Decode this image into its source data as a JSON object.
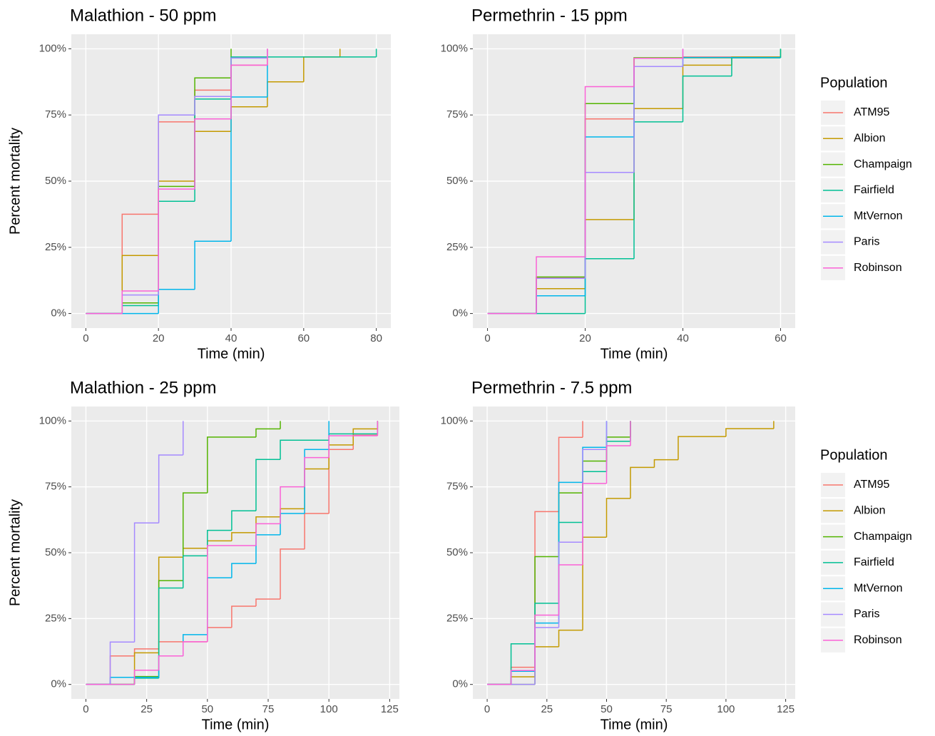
{
  "chart_data": [
    {
      "type": "line",
      "step": "post",
      "title": "Malathion - 50 ppm",
      "x_label": "Time (min)",
      "y_label": "Percent mortality",
      "xlim": [
        -4,
        84
      ],
      "xticks": [
        0,
        20,
        40,
        60,
        80
      ],
      "ylim": [
        -5.5,
        105.5
      ],
      "yticks": [
        {
          "value": 0,
          "label": "0%"
        },
        {
          "value": 25,
          "label": "25%"
        },
        {
          "value": 50,
          "label": "50%"
        },
        {
          "value": 75,
          "label": "75%"
        },
        {
          "value": 100,
          "label": "100%"
        }
      ],
      "grid": true,
      "series": [
        {
          "name": "ATM95",
          "color": "#F8766D",
          "x": [
            0,
            10,
            20,
            30,
            40,
            50
          ],
          "values": [
            0,
            37.5,
            72.4,
            84.4,
            93.8,
            100
          ]
        },
        {
          "name": "Albion",
          "color": "#C49A00",
          "x": [
            0,
            10,
            20,
            30,
            40,
            50,
            60,
            70
          ],
          "values": [
            0,
            21.9,
            50,
            68.8,
            78.1,
            87.5,
            96.9,
            100
          ]
        },
        {
          "name": "Champaign",
          "color": "#53B400",
          "x": [
            0,
            10,
            20,
            30,
            40
          ],
          "values": [
            0,
            4,
            48,
            89,
            100
          ]
        },
        {
          "name": "Fairfield",
          "color": "#00C094",
          "x": [
            0,
            10,
            20,
            30,
            40,
            80
          ],
          "values": [
            0,
            3,
            42.4,
            81,
            96.9,
            100
          ]
        },
        {
          "name": "MtVernon",
          "color": "#00B6EB",
          "x": [
            0,
            10,
            20,
            30,
            40,
            50
          ],
          "values": [
            0,
            0,
            9.1,
            27.3,
            81.8,
            93.9
          ]
        },
        {
          "name": "Paris",
          "color": "#A58AFF",
          "x": [
            0,
            10,
            20,
            30,
            40,
            50
          ],
          "values": [
            0,
            7,
            75,
            82,
            96.5,
            100
          ]
        },
        {
          "name": "Robinson",
          "color": "#FB61D7",
          "x": [
            0,
            10,
            20,
            30,
            40,
            50
          ],
          "values": [
            0,
            8.5,
            47,
            73.5,
            93.8,
            100
          ]
        }
      ]
    },
    {
      "type": "line",
      "step": "post",
      "title": "Permethrin - 15 ppm",
      "x_label": "Time (min)",
      "xlim": [
        -3,
        63
      ],
      "xticks": [
        0,
        20,
        40,
        60
      ],
      "ylim": [
        -5.5,
        105.5
      ],
      "yticks": [
        {
          "value": 0,
          "label": "0%"
        },
        {
          "value": 25,
          "label": "25%"
        },
        {
          "value": 50,
          "label": "50%"
        },
        {
          "value": 75,
          "label": "75%"
        },
        {
          "value": 100,
          "label": "100%"
        }
      ],
      "grid": true,
      "legend": "right",
      "legend_title": "Population",
      "series": [
        {
          "name": "ATM95",
          "color": "#F8766D",
          "x": [
            0,
            10,
            20,
            30,
            40,
            60
          ],
          "values": [
            0,
            13.5,
            73.5,
            96.5,
            96.9,
            96.9
          ]
        },
        {
          "name": "Albion",
          "color": "#C49A00",
          "x": [
            0,
            10,
            20,
            30,
            40,
            50,
            60
          ],
          "values": [
            0,
            9.4,
            35.5,
            77.4,
            93.8,
            96.9,
            96.9
          ]
        },
        {
          "name": "Champaign",
          "color": "#53B400",
          "x": [
            0,
            10,
            20,
            30,
            40,
            60
          ],
          "values": [
            0,
            13.8,
            79.3,
            96.6,
            96.6,
            100
          ]
        },
        {
          "name": "Fairfield",
          "color": "#00C094",
          "x": [
            0,
            10,
            20,
            30,
            40,
            50,
            60
          ],
          "values": [
            0,
            0,
            20.7,
            72.4,
            89.7,
            96.6,
            100
          ]
        },
        {
          "name": "MtVernon",
          "color": "#00B6EB",
          "x": [
            0,
            10,
            20,
            30,
            40,
            60
          ],
          "values": [
            0,
            6.7,
            66.7,
            93.3,
            96.7,
            96.7
          ]
        },
        {
          "name": "Paris",
          "color": "#A58AFF",
          "x": [
            0,
            10,
            20,
            30,
            40
          ],
          "values": [
            0,
            13.3,
            53.3,
            93.3,
            100
          ]
        },
        {
          "name": "Robinson",
          "color": "#FB61D7",
          "x": [
            0,
            10,
            20,
            30,
            40
          ],
          "values": [
            0,
            21.4,
            85.7,
            96.4,
            100
          ]
        }
      ]
    },
    {
      "type": "line",
      "step": "post",
      "title": "Malathion - 25 ppm",
      "x_label": "Time (min)",
      "y_label": "Percent mortality",
      "xlim": [
        -6,
        129
      ],
      "xticks": [
        0,
        25,
        50,
        75,
        100,
        125
      ],
      "ylim": [
        -5.5,
        105.5
      ],
      "yticks": [
        {
          "value": 0,
          "label": "0%"
        },
        {
          "value": 25,
          "label": "25%"
        },
        {
          "value": 50,
          "label": "50%"
        },
        {
          "value": 75,
          "label": "75%"
        },
        {
          "value": 100,
          "label": "100%"
        }
      ],
      "grid": true,
      "series": [
        {
          "name": "ATM95",
          "color": "#F8766D",
          "x": [
            0,
            10,
            20,
            30,
            40,
            50,
            60,
            70,
            80,
            90,
            100,
            110,
            120
          ],
          "values": [
            0,
            10.8,
            13.5,
            16.2,
            16.2,
            21.6,
            29.7,
            32.4,
            51.4,
            64.9,
            89.2,
            94.6,
            100
          ]
        },
        {
          "name": "Albion",
          "color": "#C49A00",
          "x": [
            0,
            20,
            30,
            40,
            50,
            60,
            70,
            80,
            90,
            100,
            110,
            120
          ],
          "values": [
            0,
            12,
            48.3,
            51.7,
            54.5,
            57.6,
            63.6,
            66.7,
            81.8,
            90.9,
            97,
            100
          ]
        },
        {
          "name": "Champaign",
          "color": "#53B400",
          "x": [
            0,
            20,
            30,
            40,
            50,
            70,
            80
          ],
          "values": [
            0,
            3,
            39.4,
            72.7,
            93.9,
            97,
            100
          ]
        },
        {
          "name": "Fairfield",
          "color": "#00C094",
          "x": [
            0,
            20,
            30,
            40,
            50,
            60,
            70,
            80,
            100,
            120
          ],
          "values": [
            0,
            2.4,
            36.6,
            48.8,
            58.5,
            65.9,
            85.4,
            92.7,
            95.1,
            100
          ]
        },
        {
          "name": "MtVernon",
          "color": "#00B6EB",
          "x": [
            0,
            10,
            30,
            40,
            50,
            60,
            70,
            80,
            90,
            100
          ],
          "values": [
            0,
            2.7,
            10.8,
            18.9,
            40.5,
            45.9,
            56.8,
            64.9,
            89.2,
            100
          ]
        },
        {
          "name": "Paris",
          "color": "#A58AFF",
          "x": [
            0,
            10,
            20,
            30,
            40
          ],
          "values": [
            0,
            16.1,
            61.3,
            87.1,
            100
          ]
        },
        {
          "name": "Robinson",
          "color": "#FB61D7",
          "x": [
            0,
            20,
            30,
            40,
            50,
            70,
            80,
            90,
            100,
            120
          ],
          "values": [
            0,
            5.4,
            10.8,
            16.2,
            52.7,
            61,
            75,
            86.1,
            94.4,
            100
          ]
        }
      ]
    },
    {
      "type": "line",
      "step": "post",
      "title": "Permethrin - 7.5 ppm",
      "x_label": "Time (min)",
      "xlim": [
        -6,
        129
      ],
      "xticks": [
        0,
        25,
        50,
        75,
        100,
        125
      ],
      "ylim": [
        -5.5,
        105.5
      ],
      "yticks": [
        {
          "value": 0,
          "label": "0%"
        },
        {
          "value": 25,
          "label": "25%"
        },
        {
          "value": 50,
          "label": "50%"
        },
        {
          "value": 75,
          "label": "75%"
        },
        {
          "value": 100,
          "label": "100%"
        }
      ],
      "grid": true,
      "legend": "right",
      "legend_title": "Population",
      "series": [
        {
          "name": "ATM95",
          "color": "#F8766D",
          "x": [
            0,
            10,
            20,
            30,
            40
          ],
          "values": [
            0,
            6.5,
            65.6,
            93.8,
            100
          ]
        },
        {
          "name": "Albion",
          "color": "#C49A00",
          "x": [
            0,
            10,
            20,
            30,
            40,
            50,
            60,
            70,
            80,
            100,
            120
          ],
          "values": [
            0,
            2.9,
            14.3,
            20.6,
            55.9,
            70.6,
            82.4,
            85.3,
            94.1,
            97.1,
            100
          ]
        },
        {
          "name": "Champaign",
          "color": "#53B400",
          "x": [
            0,
            20,
            30,
            40,
            50,
            60
          ],
          "values": [
            0,
            48.5,
            72.7,
            84.8,
            93.9,
            100
          ]
        },
        {
          "name": "Fairfield",
          "color": "#00C094",
          "x": [
            0,
            10,
            20,
            30,
            40,
            50,
            60
          ],
          "values": [
            0,
            15.4,
            30.8,
            61.5,
            80.8,
            92.3,
            100
          ]
        },
        {
          "name": "MtVernon",
          "color": "#00B6EB",
          "x": [
            0,
            10,
            20,
            30,
            40,
            50
          ],
          "values": [
            0,
            5,
            23.3,
            76.7,
            90,
            100
          ]
        },
        {
          "name": "Paris",
          "color": "#A58AFF",
          "x": [
            0,
            20,
            30,
            40,
            50
          ],
          "values": [
            0,
            21.6,
            54,
            89.2,
            100
          ]
        },
        {
          "name": "Robinson",
          "color": "#FB61D7",
          "x": [
            0,
            10,
            20,
            30,
            40,
            50,
            60
          ],
          "values": [
            0,
            5.3,
            26.3,
            45.4,
            76.3,
            90.6,
            100
          ]
        }
      ]
    }
  ]
}
